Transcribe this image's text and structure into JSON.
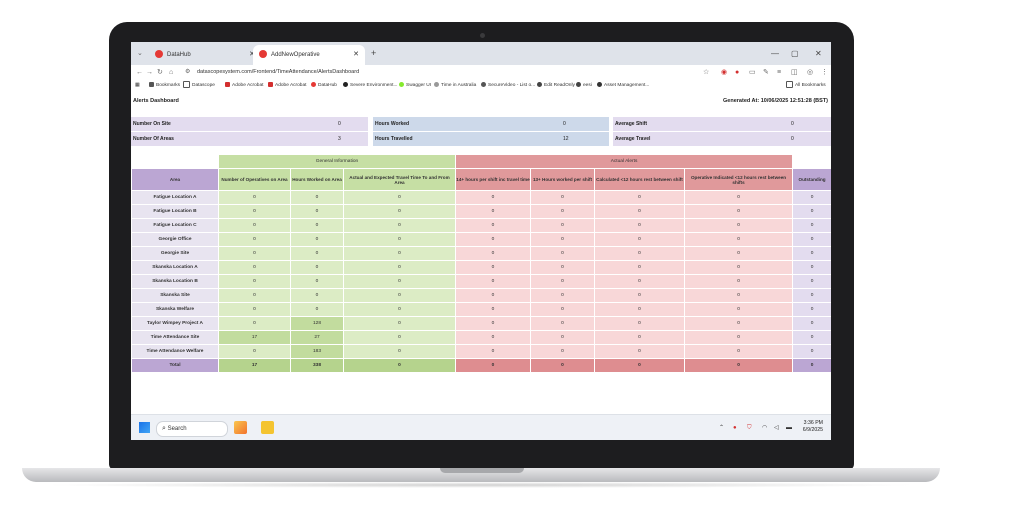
{
  "browser": {
    "tabs": [
      {
        "title": "DataHub",
        "active": false
      },
      {
        "title": "AddNewOperative",
        "active": true
      }
    ],
    "new_tab": "+",
    "url": "datascopesystem.com/Frontend/TimeAttendance/AlertsDashboard",
    "bookmarks": [
      "Bookmarks",
      "Datascope",
      "Adobe Acrobat",
      "Adobe Acrobat",
      "DataHub",
      "Severe Environment...",
      "Swagger UI",
      "Time in Australia",
      "SecureVideo - List o...",
      "Edit ReadOnly",
      "eesi",
      "Asset Management..."
    ],
    "all_bookmarks": "All Bookmarks"
  },
  "page": {
    "title": "Alerts Dashboard",
    "generated": "Generated At: 10/06/2025 12:51:28 (BST)"
  },
  "summary": {
    "row1": [
      {
        "label": "Number On Site",
        "value": "0"
      },
      {
        "label": "Hours Worked",
        "value": "0"
      },
      {
        "label": "Average Shift",
        "value": "0"
      }
    ],
    "row2": [
      {
        "label": "Number Of Areas",
        "value": "3"
      },
      {
        "label": "Hours Travelled",
        "value": "12"
      },
      {
        "label": "Average Travel",
        "value": "0"
      }
    ]
  },
  "table": {
    "group_general": "General Information",
    "group_alerts": "Actual Alerts",
    "headers": [
      "Area",
      "Number of Operatives on Area",
      "Hours Worked on Area",
      "Actual and Expected Travel Time To and From Area",
      "14+ hours per shift inc travel time",
      "13+ Hours worked per shift",
      "Calculated <12 hours rest between shift",
      "Operative Indicated <12 hours rest between shifts",
      "Outstanding"
    ],
    "rows": [
      {
        "area": "Fatigue Location A",
        "cells": [
          "0",
          "0",
          "0",
          "0",
          "0",
          "0",
          "0",
          "0"
        ]
      },
      {
        "area": "Fatigue Location B",
        "cells": [
          "0",
          "0",
          "0",
          "0",
          "0",
          "0",
          "0",
          "0"
        ]
      },
      {
        "area": "Fatigue Location C",
        "cells": [
          "0",
          "0",
          "0",
          "0",
          "0",
          "0",
          "0",
          "0"
        ]
      },
      {
        "area": "Georgie Office",
        "cells": [
          "0",
          "0",
          "0",
          "0",
          "0",
          "0",
          "0",
          "0"
        ]
      },
      {
        "area": "Georgie Site",
        "cells": [
          "0",
          "0",
          "0",
          "0",
          "0",
          "0",
          "0",
          "0"
        ]
      },
      {
        "area": "Skanska Location A",
        "cells": [
          "0",
          "0",
          "0",
          "0",
          "0",
          "0",
          "0",
          "0"
        ]
      },
      {
        "area": "Skanska Location B",
        "cells": [
          "0",
          "0",
          "0",
          "0",
          "0",
          "0",
          "0",
          "0"
        ]
      },
      {
        "area": "Skanska Site",
        "cells": [
          "0",
          "0",
          "0",
          "0",
          "0",
          "0",
          "0",
          "0"
        ]
      },
      {
        "area": "Skanska Welfare",
        "cells": [
          "0",
          "0",
          "0",
          "0",
          "0",
          "0",
          "0",
          "0"
        ]
      },
      {
        "area": "Taylor Wimpey Project A",
        "cells": [
          "0",
          "128",
          "0",
          "0",
          "0",
          "0",
          "0",
          "0"
        ]
      },
      {
        "area": "Time Attendance Site",
        "cells": [
          "17",
          "27",
          "0",
          "0",
          "0",
          "0",
          "0",
          "0"
        ]
      },
      {
        "area": "Time Attendance Welfare",
        "cells": [
          "0",
          "183",
          "0",
          "0",
          "0",
          "0",
          "0",
          "0"
        ]
      }
    ],
    "total": {
      "area": "Total",
      "cells": [
        "17",
        "338",
        "0",
        "0",
        "0",
        "0",
        "0",
        "0"
      ]
    }
  },
  "taskbar": {
    "search": "Search",
    "time": "3:36 PM",
    "date": "6/9/2025"
  }
}
